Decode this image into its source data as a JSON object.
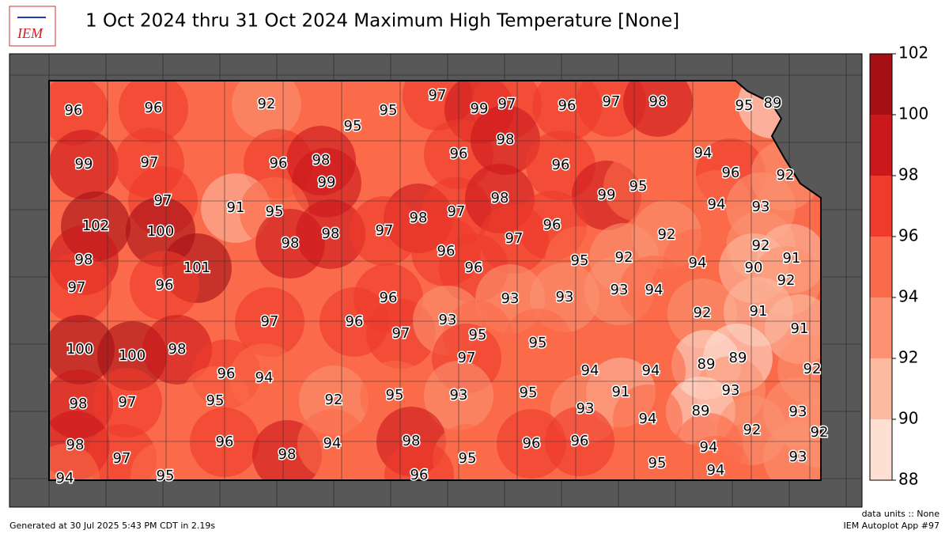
{
  "title": "1 Oct 2024 thru 31 Oct 2024 Maximum High Temperature [None]",
  "logo": "IEM",
  "colorbar": {
    "ticks": [
      88,
      90,
      92,
      94,
      96,
      98,
      100,
      102
    ],
    "colors": [
      "#fee0d2",
      "#fcbba1",
      "#fc9272",
      "#fb6a4a",
      "#ef3b2c",
      "#cb181d",
      "#a50f15"
    ]
  },
  "stations": [
    96,
    96,
    92,
    95,
    95,
    97,
    99,
    97,
    96,
    97,
    98,
    95,
    89,
    99,
    97,
    96,
    98,
    99,
    96,
    98,
    96,
    94,
    96,
    92,
    97,
    91,
    95,
    98,
    97,
    98,
    99,
    95,
    94,
    93,
    102,
    100,
    98,
    98,
    97,
    96,
    97,
    92,
    92,
    98,
    101,
    96,
    96,
    95,
    92,
    94,
    90,
    91,
    92,
    97,
    96,
    96,
    93,
    93,
    93,
    94,
    92,
    91,
    97,
    96,
    97,
    93,
    95,
    95,
    91,
    100,
    100,
    98,
    97,
    89,
    89,
    92,
    96,
    94,
    94,
    94,
    93,
    95,
    92,
    95,
    93,
    95,
    91,
    93,
    89,
    93,
    98,
    97,
    96,
    98,
    94,
    98,
    94,
    92,
    92,
    98,
    97,
    95,
    96,
    96,
    95,
    94,
    93,
    94,
    95,
    96,
    94
  ],
  "footer": {
    "units": "data units :: None",
    "generated": "Generated at 30 Jul 2025 5:43 PM CDT in 2.19s",
    "app": "IEM Autoplot App #97"
  }
}
